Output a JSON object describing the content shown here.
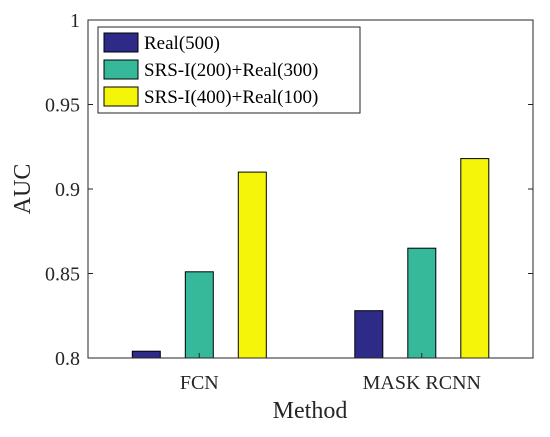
{
  "chart_data": {
    "type": "bar",
    "xlabel": "Method",
    "ylabel": "AUC",
    "categories": [
      "FCN",
      "MASK RCNN"
    ],
    "ylim": [
      0.8,
      1.0
    ],
    "yticks": [
      "0.8",
      "0.85",
      "0.9",
      "0.95",
      "1"
    ],
    "grid": false,
    "legend_position": "top-left",
    "series": [
      {
        "name": "Real(500)",
        "color": "#2e2a87",
        "values": [
          0.804,
          0.828
        ]
      },
      {
        "name": "SRS-I(200)+Real(300)",
        "color": "#36b89a",
        "values": [
          0.851,
          0.865
        ]
      },
      {
        "name": "SRS-I(400)+Real(100)",
        "color": "#f5f50a",
        "values": [
          0.91,
          0.918
        ]
      }
    ]
  }
}
